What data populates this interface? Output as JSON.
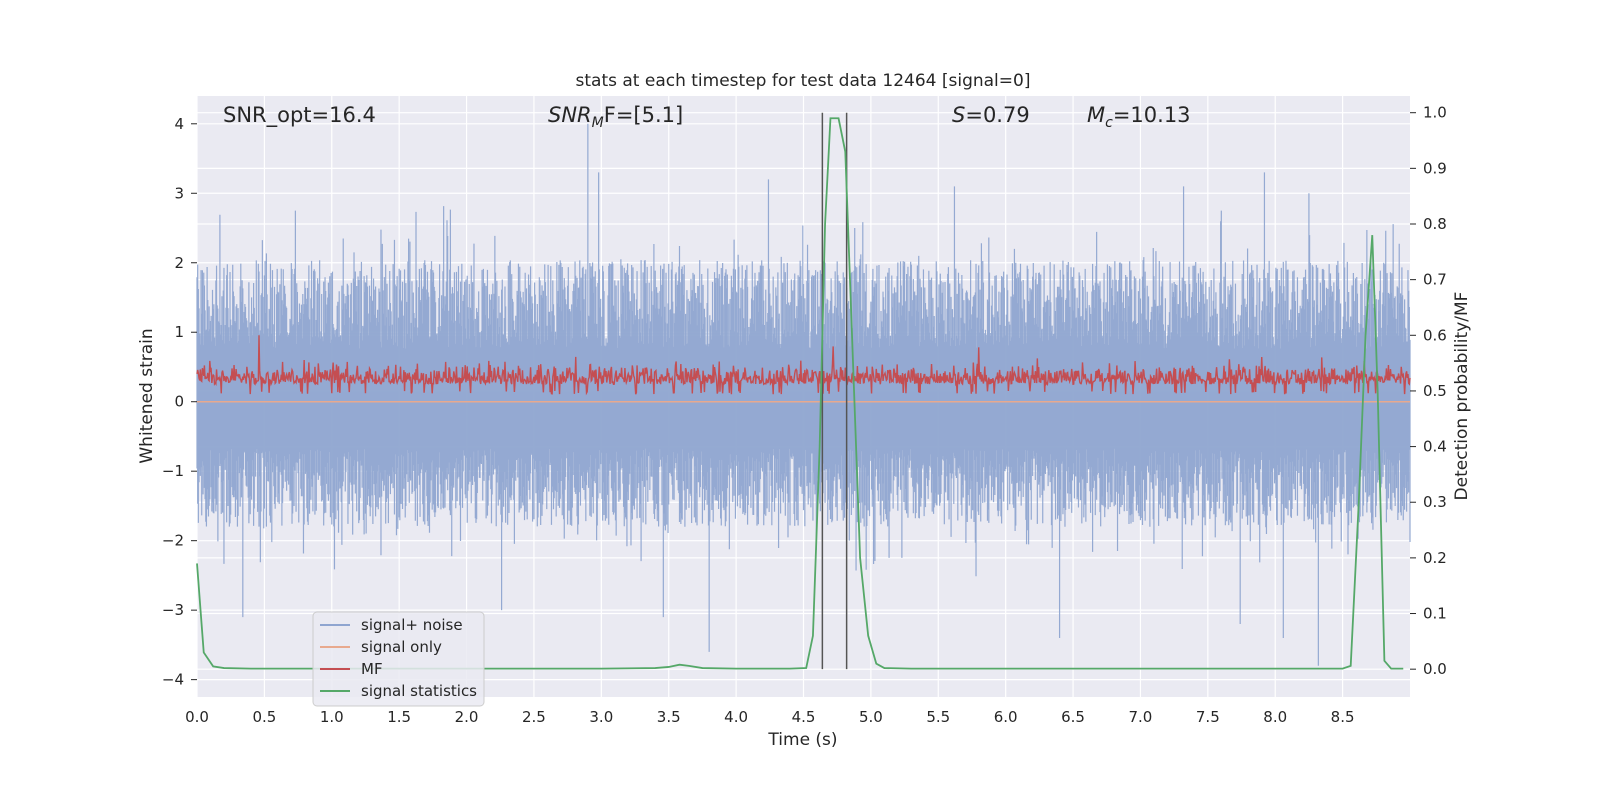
{
  "chart_data": {
    "type": "line",
    "title": "stats at each timestep for test data 12464 [signal=0]",
    "xlabel": "Time (s)",
    "ylabel": "Whitened strain",
    "ylabel_right": "Detection probability/MF",
    "xlim": [
      0.0,
      9.0
    ],
    "ylim": [
      -4.25,
      4.4
    ],
    "ylim_right": [
      -0.05,
      1.03
    ],
    "x_ticks": [
      "0.0",
      "0.5",
      "1.0",
      "1.5",
      "2.0",
      "2.5",
      "3.0",
      "3.5",
      "4.0",
      "4.5",
      "5.0",
      "5.5",
      "6.0",
      "6.5",
      "7.0",
      "7.5",
      "8.0",
      "8.5"
    ],
    "y_ticks": [
      "−4",
      "−3",
      "−2",
      "−1",
      "0",
      "1",
      "2",
      "3",
      "4"
    ],
    "y_ticks_right": [
      "0.0",
      "0.1",
      "0.2",
      "0.3",
      "0.4",
      "0.5",
      "0.6",
      "0.7",
      "0.8",
      "0.9",
      "1.0"
    ],
    "grid": true,
    "annotations": [
      {
        "text": "SNR_opt=16.4"
      },
      {
        "prefix": "SNR",
        "sub": "M",
        "suffix": "F=[5.1]"
      },
      {
        "prefix": "S",
        "sub": "",
        "suffix": "=0.79"
      },
      {
        "prefix": "M",
        "sub": "c",
        "suffix": "=10.13"
      }
    ],
    "vlines_x": [
      4.64,
      4.82
    ],
    "legend": {
      "placement": "lower-left",
      "entries": [
        {
          "label": "signal+ noise",
          "color": "#8fa5d0"
        },
        {
          "label": "signal only",
          "color": "#e8a98e"
        },
        {
          "label": "MF",
          "color": "#c44e52"
        },
        {
          "label": "signal statistics",
          "color": "#55a868"
        }
      ]
    },
    "series": [
      {
        "name": "signal+ noise",
        "axis": "left",
        "color": "#8fa5d0",
        "style": "dense noise band",
        "x_range": [
          0.0,
          9.0
        ],
        "typical_range": [
          -1.5,
          1.7
        ],
        "peaks": [
          {
            "x": 2.9,
            "y": 4.0
          },
          {
            "x": 2.98,
            "y": 3.3
          },
          {
            "x": 4.24,
            "y": 3.2
          },
          {
            "x": 5.62,
            "y": 3.1
          },
          {
            "x": 7.32,
            "y": 3.1
          },
          {
            "x": 7.92,
            "y": 3.3
          },
          {
            "x": 8.25,
            "y": 3.0
          },
          {
            "x": 0.34,
            "y": -3.1
          },
          {
            "x": 2.26,
            "y": -3.0
          },
          {
            "x": 3.46,
            "y": -3.1
          },
          {
            "x": 3.8,
            "y": -3.6
          },
          {
            "x": 6.4,
            "y": -3.4
          },
          {
            "x": 7.74,
            "y": -3.2
          },
          {
            "x": 8.06,
            "y": -3.4
          },
          {
            "x": 8.32,
            "y": -3.8
          }
        ]
      },
      {
        "name": "signal only",
        "axis": "left",
        "color": "#e8a98e",
        "x": [
          0.0,
          9.0
        ],
        "y": [
          0.0,
          0.0
        ]
      },
      {
        "name": "MF",
        "axis": "right",
        "color": "#c44e52",
        "style": "dense noise band",
        "x_range": [
          0.0,
          9.0
        ],
        "typical_range": [
          0.5,
          0.56
        ],
        "peaks": [
          {
            "x": 0.46,
            "y": 0.6
          },
          {
            "x": 4.72,
            "y": 0.58
          }
        ]
      },
      {
        "name": "signal statistics",
        "axis": "right",
        "color": "#55a868",
        "x": [
          0.0,
          0.05,
          0.12,
          0.2,
          0.4,
          1.0,
          2.0,
          3.0,
          3.4,
          3.5,
          3.58,
          3.65,
          3.75,
          4.0,
          4.4,
          4.52,
          4.57,
          4.62,
          4.66,
          4.7,
          4.76,
          4.81,
          4.86,
          4.92,
          4.98,
          5.04,
          5.1,
          5.3,
          6.0,
          7.0,
          8.0,
          8.5,
          8.56,
          8.62,
          8.67,
          8.72,
          8.76,
          8.81,
          8.86,
          8.95
        ],
        "y": [
          0.19,
          0.03,
          0.005,
          0.002,
          0.001,
          0.001,
          0.001,
          0.001,
          0.002,
          0.004,
          0.008,
          0.006,
          0.002,
          0.001,
          0.001,
          0.002,
          0.06,
          0.4,
          0.8,
          0.99,
          0.99,
          0.93,
          0.6,
          0.2,
          0.06,
          0.01,
          0.002,
          0.001,
          0.001,
          0.001,
          0.001,
          0.001,
          0.006,
          0.3,
          0.6,
          0.78,
          0.5,
          0.015,
          0.001,
          0.001
        ]
      }
    ]
  }
}
